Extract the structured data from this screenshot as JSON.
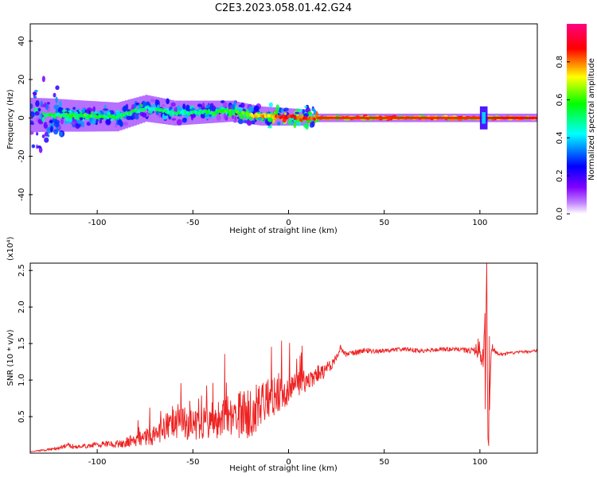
{
  "figure": {
    "title": "C2E3.2023.058.01.42.G24"
  },
  "chart_data": [
    {
      "type": "heatmap",
      "xlabel": "Height of straight line (km)",
      "ylabel": "Frequency (Hz)",
      "xlim": [
        -135,
        130
      ],
      "ylim": [
        -50,
        49
      ],
      "x_ticks": [
        -100,
        -50,
        0,
        50,
        100
      ],
      "y_ticks": [
        -40,
        -20,
        0,
        20,
        40
      ],
      "colorbar": {
        "label": "Normalized spectral amplitude",
        "range": [
          0,
          1
        ],
        "ticks": [
          0.0,
          0.2,
          0.4,
          0.6,
          0.8
        ],
        "colors": [
          "#ffffff",
          "#8000ff",
          "#0000ff",
          "#00ffff",
          "#00ff00",
          "#ffff00",
          "#ff0000",
          "#ff0080"
        ]
      },
      "dominant_band": [
        {
          "x": -125,
          "f": 1.5,
          "a": 0.5
        },
        {
          "x": -110,
          "f": 1.0,
          "a": 0.55
        },
        {
          "x": -90,
          "f": 0.5,
          "a": 0.5
        },
        {
          "x": -75,
          "f": 5.0,
          "a": 0.45
        },
        {
          "x": -60,
          "f": 2.5,
          "a": 0.45
        },
        {
          "x": -45,
          "f": 3.0,
          "a": 0.5
        },
        {
          "x": -30,
          "f": 3.5,
          "a": 0.55
        },
        {
          "x": -15,
          "f": 1.0,
          "a": 0.7
        },
        {
          "x": 0,
          "f": 0.5,
          "a": 0.85
        },
        {
          "x": 15,
          "f": 0.0,
          "a": 0.8
        },
        {
          "x": 50,
          "f": 0.0,
          "a": 0.8
        },
        {
          "x": 100,
          "f": 0.0,
          "a": 0.8
        },
        {
          "x": 130,
          "f": 0.0,
          "a": 0.85
        }
      ]
    },
    {
      "type": "line",
      "xlabel": "Height of straight line (km)",
      "ylabel": "SNR (10 * v/v)",
      "y_multiplier": "(x10⁴)",
      "xlim": [
        -135,
        130
      ],
      "ylim": [
        0,
        2.6
      ],
      "x_ticks": [
        -100,
        -50,
        0,
        50,
        100
      ],
      "y_ticks": [
        0.5,
        1.0,
        1.5,
        2.0,
        2.5
      ],
      "series": [
        {
          "color": "#ee2222",
          "x": [
            -135,
            -125,
            -115,
            -110,
            -100,
            -90,
            -80,
            -70,
            -60,
            -50,
            -40,
            -30,
            -20,
            -10,
            0,
            10,
            20,
            25,
            27,
            30,
            40,
            50,
            60,
            70,
            80,
            90,
            95,
            100,
            102,
            103.5,
            104.5,
            106,
            108,
            110,
            120,
            130
          ],
          "y": [
            0.02,
            0.05,
            0.1,
            0.08,
            0.12,
            0.12,
            0.18,
            0.26,
            0.45,
            0.38,
            0.45,
            0.5,
            0.55,
            0.75,
            0.85,
            1.0,
            1.15,
            1.3,
            1.45,
            1.35,
            1.4,
            1.4,
            1.42,
            1.4,
            1.42,
            1.42,
            1.4,
            1.45,
            1.3,
            2.6,
            0.1,
            1.5,
            1.38,
            1.35,
            1.38,
            1.4
          ],
          "spread": [
            0.0,
            0.02,
            0.04,
            0.03,
            0.04,
            0.05,
            0.09,
            0.15,
            0.25,
            0.2,
            0.25,
            0.3,
            0.35,
            0.28,
            0.22,
            0.15,
            0.1,
            0.05,
            0.05,
            0.04,
            0.04,
            0.03,
            0.03,
            0.03,
            0.03,
            0.03,
            0.05,
            0.15,
            0.25,
            0.1,
            0.05,
            0.1,
            0.04,
            0.02,
            0.02,
            0.02
          ]
        }
      ]
    }
  ]
}
